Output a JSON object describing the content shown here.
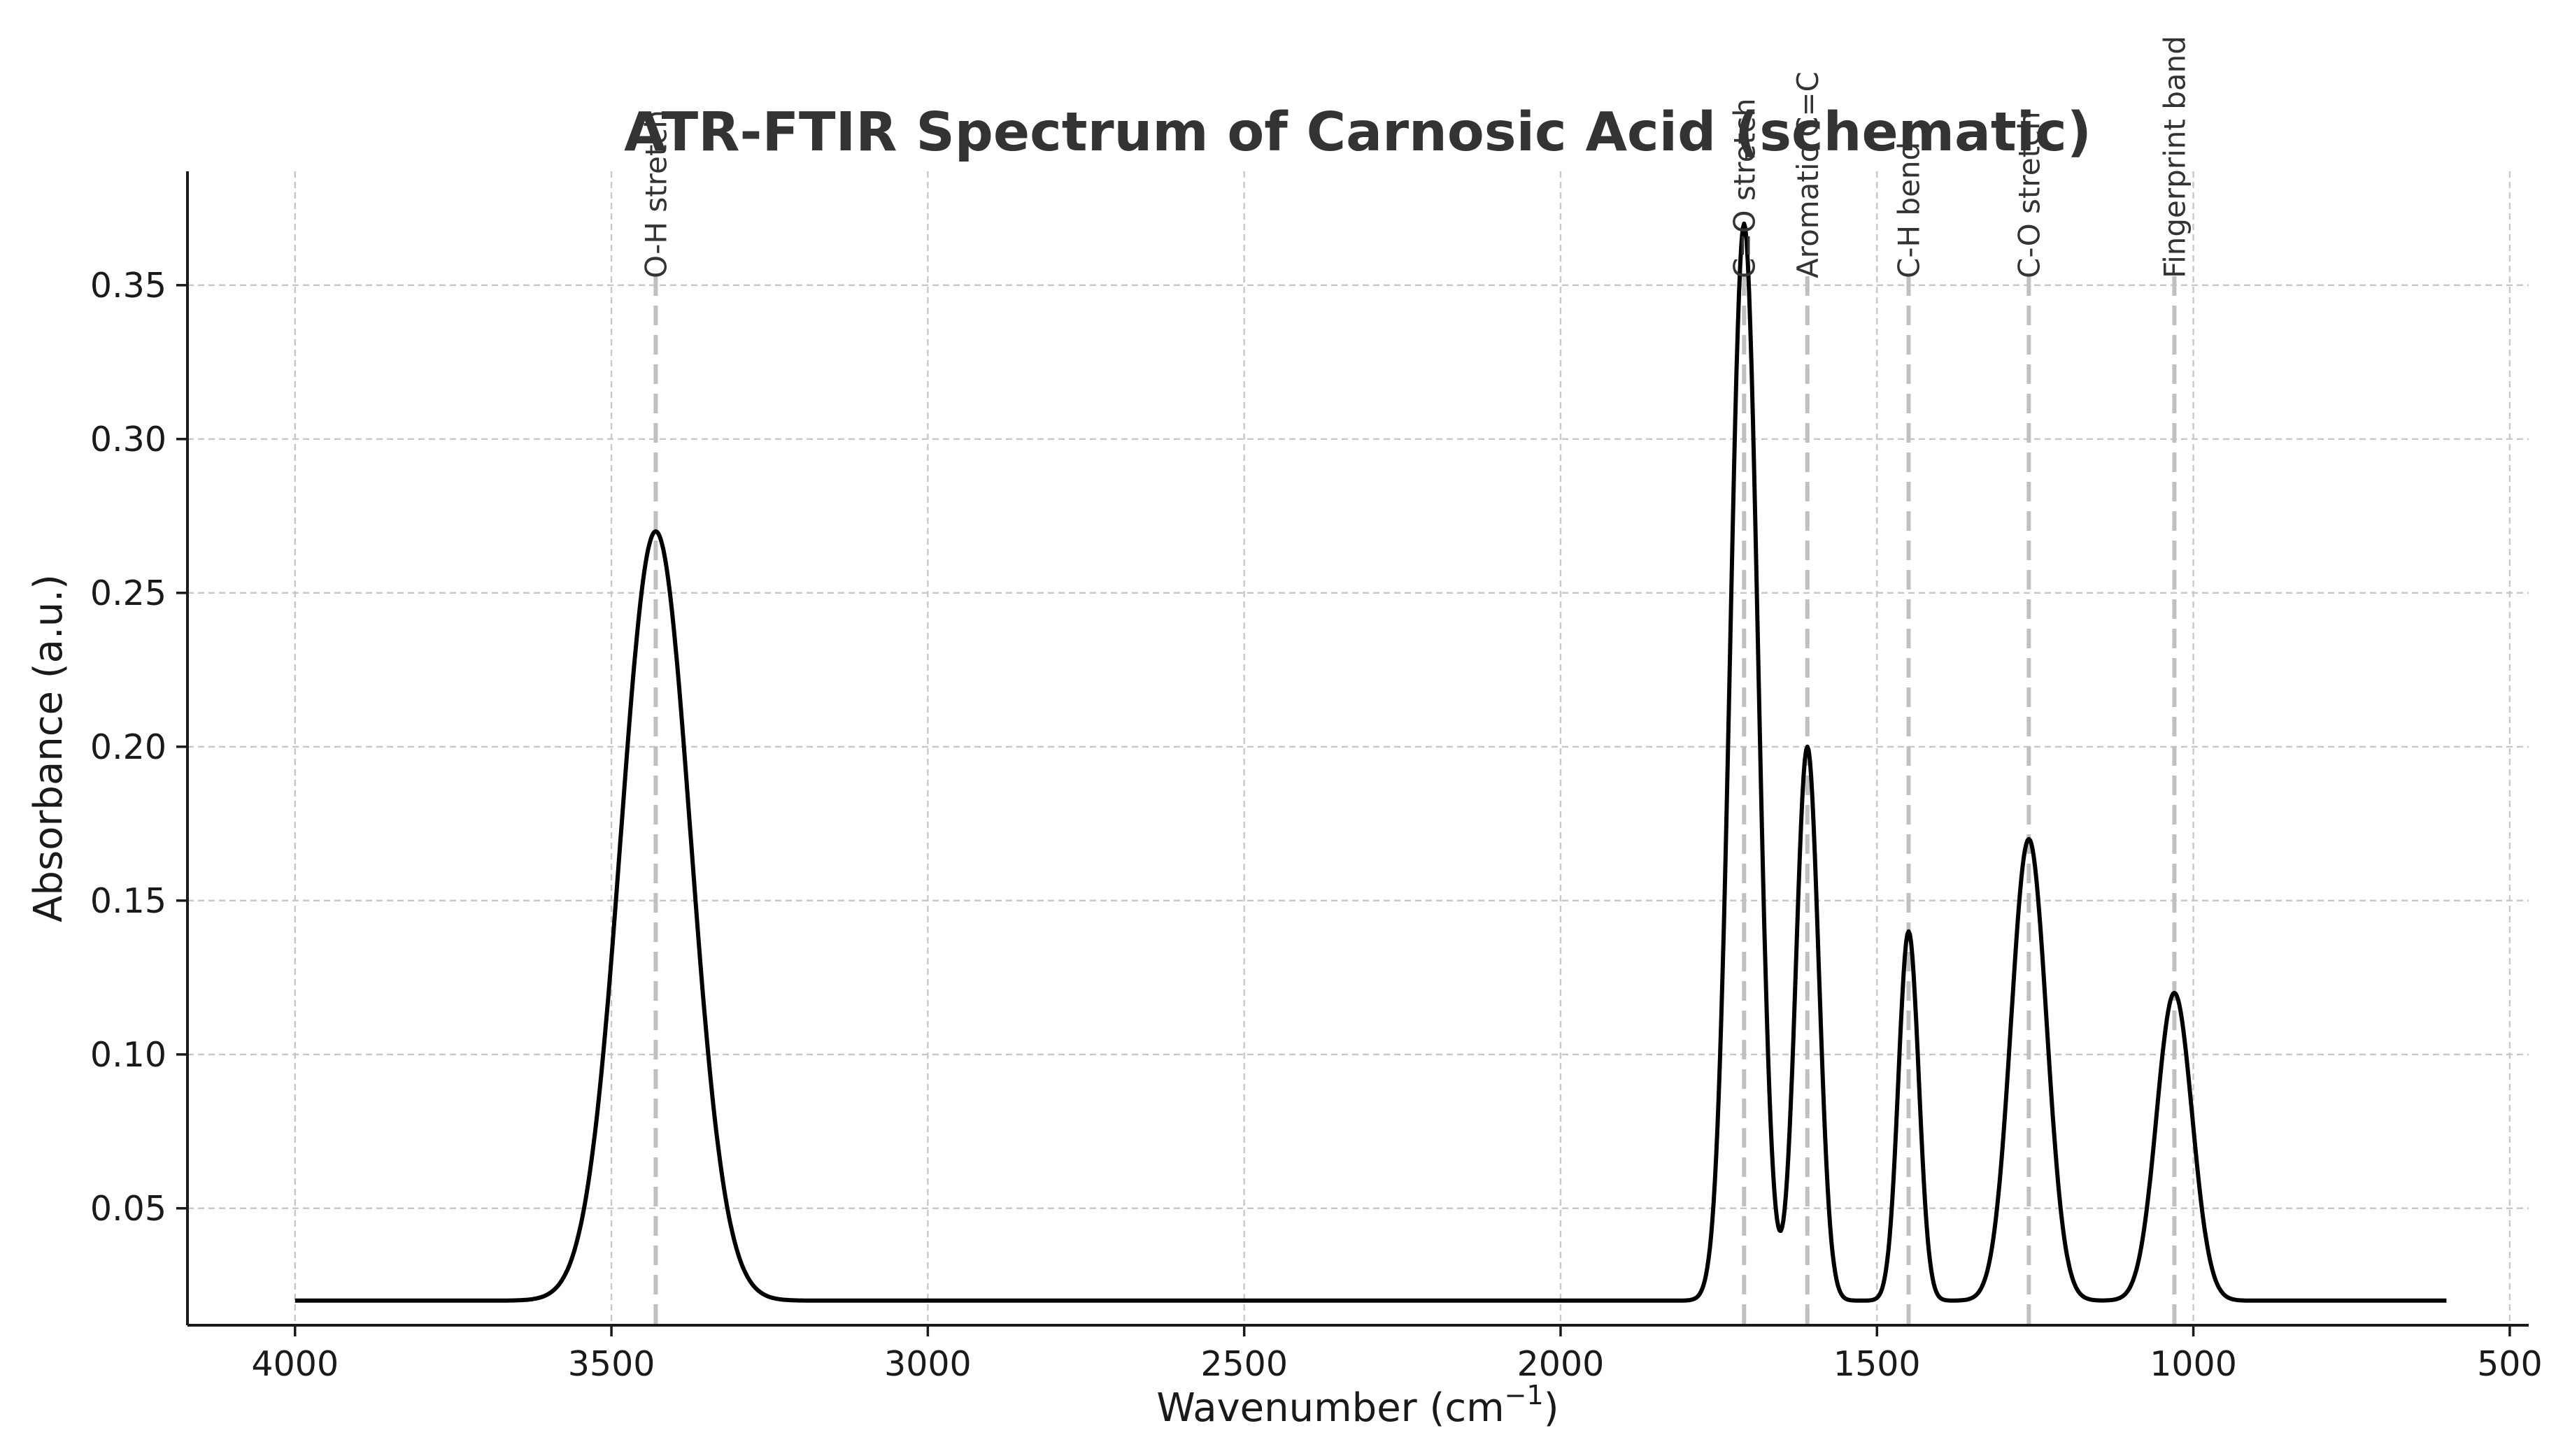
{
  "chart_data": {
    "type": "line",
    "title": "ATR-FTIR Spectrum of Carnosic Acid (schematic)",
    "xlabel": "Wavenumber (cm",
    "xlabel_sup": "−1",
    "xlabel_suffix": ")",
    "ylabel": "Absorbance (a.u.)",
    "xlim": [
      4170,
      470
    ],
    "ylim": [
      0.012,
      0.387
    ],
    "x_reversed": true,
    "grid": true,
    "x_ticks": [
      4000,
      3500,
      3000,
      2500,
      2000,
      1500,
      1000,
      500
    ],
    "x_tick_labels": [
      "4000",
      "3500",
      "3000",
      "2500",
      "2000",
      "1500",
      "1000",
      "500"
    ],
    "y_ticks": [
      0.05,
      0.1,
      0.15,
      0.2,
      0.25,
      0.3,
      0.35
    ],
    "y_tick_labels": [
      "0.05",
      "0.10",
      "0.15",
      "0.20",
      "0.25",
      "0.30",
      "0.35"
    ],
    "x_range": [
      4000,
      600
    ],
    "baseline": 0.02,
    "series": [
      {
        "color": "#000000",
        "peaks": [
          {
            "center": 3430,
            "height": 0.25,
            "sigma": 55
          },
          {
            "center": 1710,
            "height": 0.35,
            "sigma": 22
          },
          {
            "center": 1610,
            "height": 0.18,
            "sigma": 18
          },
          {
            "center": 1450,
            "height": 0.12,
            "sigma": 16
          },
          {
            "center": 1260,
            "height": 0.15,
            "sigma": 28
          },
          {
            "center": 1030,
            "height": 0.1,
            "sigma": 28
          }
        ]
      }
    ],
    "annotations": [
      {
        "x": 3430,
        "label": "O-H stretch"
      },
      {
        "x": 1710,
        "label": "C=O stretch"
      },
      {
        "x": 1610,
        "label": "Aromatic C=C"
      },
      {
        "x": 1450,
        "label": "C-H bend"
      },
      {
        "x": 1260,
        "label": "C-O stretch"
      },
      {
        "x": 1030,
        "label": "Fingerprint band"
      }
    ]
  }
}
